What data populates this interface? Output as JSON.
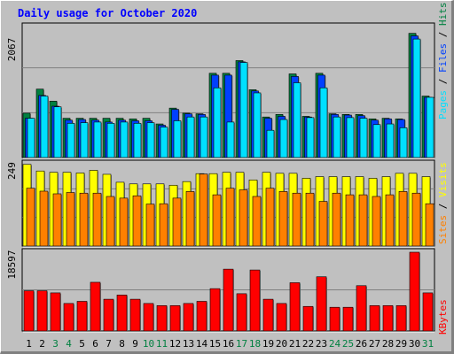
{
  "title": "Daily usage for October 2020",
  "colors": {
    "background": "#c0c0c0",
    "title": "#0000ff",
    "hits": "#008040",
    "files": "#0040ff",
    "pages": "#00e0ff",
    "visits": "#ffff00",
    "sites": "#ff8000",
    "kbytes": "#ff0000",
    "weekend_label": "#008040",
    "weekday_label": "#000000"
  },
  "chart_data": [
    {
      "type": "bar",
      "panel": "hits-files-pages",
      "ymax_label": "2067",
      "ylim": [
        0,
        2067
      ],
      "grid": true,
      "axis_label": {
        "pages": "Pages",
        "sep1": " / ",
        "files": "Files",
        "sep2": " / ",
        "hits": "Hits"
      },
      "categories": [
        "1",
        "2",
        "3",
        "4",
        "5",
        "6",
        "7",
        "8",
        "9",
        "10",
        "11",
        "12",
        "13",
        "14",
        "15",
        "16",
        "17",
        "18",
        "19",
        "20",
        "21",
        "22",
        "23",
        "24",
        "25",
        "26",
        "27",
        "28",
        "29",
        "30",
        "31"
      ],
      "series": [
        {
          "name": "Hits",
          "values": [
            700,
            1080,
            890,
            620,
            620,
            620,
            620,
            620,
            610,
            620,
            530,
            780,
            700,
            690,
            1330,
            1330,
            1530,
            1070,
            640,
            680,
            1320,
            650,
            1330,
            690,
            680,
            680,
            610,
            620,
            610,
            1960,
            970
          ]
        },
        {
          "name": "Files",
          "values": [
            620,
            980,
            810,
            590,
            600,
            590,
            560,
            590,
            580,
            580,
            510,
            760,
            690,
            680,
            1300,
            1300,
            1510,
            1050,
            620,
            650,
            1280,
            640,
            1300,
            680,
            670,
            660,
            590,
            610,
            600,
            1920,
            950
          ]
        },
        {
          "name": "Pages",
          "values": [
            620,
            970,
            800,
            540,
            550,
            560,
            540,
            560,
            540,
            550,
            480,
            580,
            640,
            640,
            1100,
            560,
            1500,
            1020,
            430,
            600,
            1180,
            630,
            1100,
            640,
            630,
            620,
            520,
            530,
            470,
            1870,
            950
          ]
        }
      ]
    },
    {
      "type": "bar",
      "panel": "visits-sites",
      "ymax_label": "249",
      "ylim": [
        0,
        249
      ],
      "grid": true,
      "axis_label": {
        "sites": "Sites",
        "sep": " / ",
        "visits": "Visits"
      },
      "categories": [
        "1",
        "2",
        "3",
        "4",
        "5",
        "6",
        "7",
        "8",
        "9",
        "10",
        "11",
        "12",
        "13",
        "14",
        "15",
        "16",
        "17",
        "18",
        "19",
        "20",
        "21",
        "22",
        "23",
        "24",
        "25",
        "26",
        "27",
        "28",
        "29",
        "30",
        "31"
      ],
      "series": [
        {
          "name": "Visits",
          "values": [
            247,
            227,
            223,
            223,
            221,
            229,
            217,
            193,
            188,
            188,
            188,
            184,
            195,
            219,
            219,
            223,
            223,
            200,
            223,
            220,
            220,
            205,
            210,
            210,
            210,
            210,
            205,
            210,
            220,
            220,
            210
          ]
        },
        {
          "name": "Sites",
          "values": [
            175,
            166,
            158,
            162,
            160,
            160,
            150,
            145,
            152,
            127,
            128,
            145,
            165,
            218,
            155,
            175,
            170,
            150,
            175,
            165,
            160,
            160,
            135,
            160,
            155,
            155,
            150,
            155,
            165,
            160,
            128
          ]
        }
      ]
    },
    {
      "type": "bar",
      "panel": "kbytes",
      "ymax_label": "18597",
      "ylim": [
        0,
        18597
      ],
      "grid": true,
      "axis_label": {
        "kbytes": "KBytes"
      },
      "categories": [
        "1",
        "2",
        "3",
        "4",
        "5",
        "6",
        "7",
        "8",
        "9",
        "10",
        "11",
        "12",
        "13",
        "14",
        "15",
        "16",
        "17",
        "18",
        "19",
        "20",
        "21",
        "22",
        "23",
        "24",
        "25",
        "26",
        "27",
        "28",
        "29",
        "30",
        "31"
      ],
      "series": [
        {
          "name": "KBytes",
          "values": [
            9500,
            9500,
            9000,
            6500,
            7000,
            11500,
            7500,
            8500,
            7500,
            6500,
            6000,
            6000,
            6500,
            7000,
            10000,
            14600,
            8800,
            14400,
            7500,
            6500,
            11400,
            5800,
            12800,
            5600,
            5600,
            10700,
            6000,
            6000,
            6000,
            18597,
            9000
          ]
        }
      ]
    }
  ]
}
